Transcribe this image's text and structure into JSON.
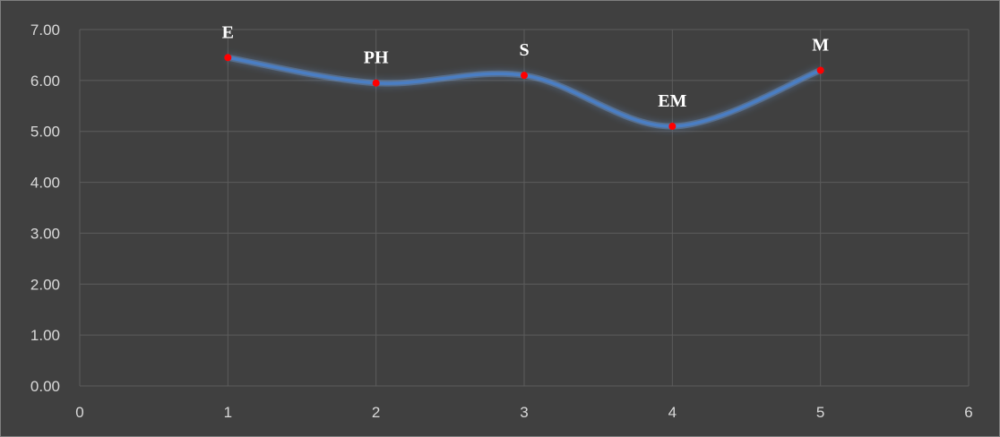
{
  "chart_data": {
    "type": "scatter",
    "title": "",
    "xlabel": "",
    "ylabel": "",
    "xlim": [
      0,
      6
    ],
    "ylim": [
      0,
      7
    ],
    "x_ticks": [
      "0",
      "1",
      "2",
      "3",
      "4",
      "5",
      "6"
    ],
    "y_ticks": [
      "0.00",
      "1.00",
      "2.00",
      "3.00",
      "4.00",
      "5.00",
      "6.00",
      "7.00"
    ],
    "grid": true,
    "smoothed_line": true,
    "colors": {
      "background": "#404040",
      "grid": "#5c5c5c",
      "line": "#4a7ec4",
      "line_glow": "#6fa3e8",
      "marker": "#ff0000",
      "tick_text": "#d9d9d9",
      "label_text": "#ffffff"
    },
    "series": [
      {
        "x": [
          1,
          2,
          3,
          4,
          5
        ],
        "y": [
          6.45,
          5.95,
          6.1,
          5.1,
          6.2
        ],
        "labels": [
          "E",
          "PH",
          "S",
          "EM",
          "M"
        ]
      }
    ]
  }
}
